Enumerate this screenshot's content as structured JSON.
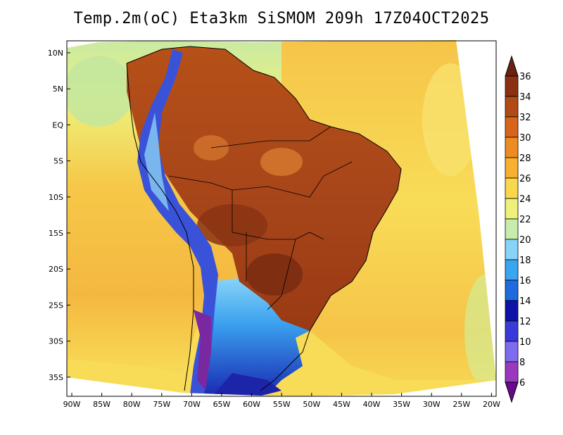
{
  "title": "Temp.2m(oC) Eta3km SiSMOM 209h 17Z04OCT2025",
  "map": {
    "lat_labels": [
      "10N",
      "5N",
      "EQ",
      "5S",
      "10S",
      "15S",
      "20S",
      "25S",
      "30S",
      "35S"
    ],
    "lon_labels": [
      "90W",
      "85W",
      "80W",
      "75W",
      "70W",
      "65W",
      "60W",
      "55W",
      "50W",
      "45W",
      "40W",
      "35W",
      "30W",
      "25W",
      "20W"
    ]
  },
  "colorbar": {
    "levels": [
      "6",
      "8",
      "10",
      "12",
      "14",
      "16",
      "18",
      "20",
      "22",
      "24",
      "26",
      "28",
      "30",
      "32",
      "34",
      "36"
    ],
    "colors": [
      "#6a0a8a",
      "#9b38c0",
      "#7e6cf0",
      "#3a3ad8",
      "#0e12a8",
      "#1e6ae0",
      "#3aa6f0",
      "#88d4f8",
      "#c8ecac",
      "#eef07a",
      "#f8d84a",
      "#f8b030",
      "#ee8c22",
      "#d8661a",
      "#b24a16",
      "#8c3012",
      "#6a2210"
    ]
  },
  "colors": {
    "ocean_warm": "#f6c048",
    "ocean_mid": "#f8dc54",
    "ocean_cool": "#c0e6a0",
    "land_hot": "#b04a18",
    "land_very_hot": "#8a3414",
    "andes_cold": "#2c3ccc",
    "patagonia": "#3a48d0"
  }
}
